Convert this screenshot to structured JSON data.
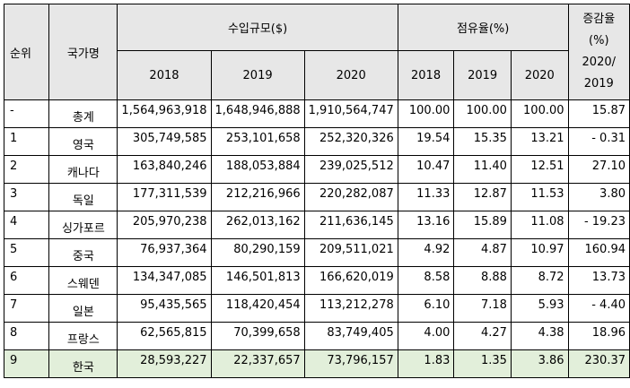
{
  "header": {
    "rank": "순위",
    "country": "국가명",
    "import_scale": "수입규모($)",
    "share": "점유율(%)",
    "change_line1": "증감율",
    "change_line2": "(%)",
    "change_line3": "2020/",
    "change_line4": "2019",
    "years": [
      "2018",
      "2019",
      "2020"
    ]
  },
  "rows": [
    {
      "rank": "-",
      "country": "총계",
      "imp2018": "1,564,963,918",
      "imp2019": "1,648,946,888",
      "imp2020": "1,910,564,747",
      "sh2018": "100.00",
      "sh2019": "100.00",
      "sh2020": "100.00",
      "change": "15.87"
    },
    {
      "rank": "1",
      "country": "영국",
      "imp2018": "305,749,585",
      "imp2019": "253,101,658",
      "imp2020": "252,320,326",
      "sh2018": "19.54",
      "sh2019": "15.35",
      "sh2020": "13.21",
      "change": "- 0.31"
    },
    {
      "rank": "2",
      "country": "캐나다",
      "imp2018": "163,840,246",
      "imp2019": "188,053,884",
      "imp2020": "239,025,512",
      "sh2018": "10.47",
      "sh2019": "11.40",
      "sh2020": "12.51",
      "change": "27.10"
    },
    {
      "rank": "3",
      "country": "독일",
      "imp2018": "177,311,539",
      "imp2019": "212,216,966",
      "imp2020": "220,282,087",
      "sh2018": "11.33",
      "sh2019": "12.87",
      "sh2020": "11.53",
      "change": "3.80"
    },
    {
      "rank": "4",
      "country": "싱가포르",
      "imp2018": "205,970,238",
      "imp2019": "262,013,162",
      "imp2020": "211,636,145",
      "sh2018": "13.16",
      "sh2019": "15.89",
      "sh2020": "11.08",
      "change": "- 19.23"
    },
    {
      "rank": "5",
      "country": "중국",
      "imp2018": "76,937,364",
      "imp2019": "80,290,159",
      "imp2020": "209,511,021",
      "sh2018": "4.92",
      "sh2019": "4.87",
      "sh2020": "10.97",
      "change": "160.94"
    },
    {
      "rank": "6",
      "country": "스웨덴",
      "imp2018": "134,347,085",
      "imp2019": "146,501,813",
      "imp2020": "166,620,019",
      "sh2018": "8.58",
      "sh2019": "8.88",
      "sh2020": "8.72",
      "change": "13.73"
    },
    {
      "rank": "7",
      "country": "일본",
      "imp2018": "95,435,565",
      "imp2019": "118,420,454",
      "imp2020": "113,212,278",
      "sh2018": "6.10",
      "sh2019": "7.18",
      "sh2020": "5.93",
      "change": "- 4.40"
    },
    {
      "rank": "8",
      "country": "프랑스",
      "imp2018": "62,565,815",
      "imp2019": "70,399,658",
      "imp2020": "83,749,405",
      "sh2018": "4.00",
      "sh2019": "4.27",
      "sh2020": "4.38",
      "change": "18.96"
    },
    {
      "rank": "9",
      "country": "한국",
      "imp2018": "28,593,227",
      "imp2019": "22,337,657",
      "imp2020": "73,796,157",
      "sh2018": "1.83",
      "sh2019": "1.35",
      "sh2020": "3.86",
      "change": "230.37"
    }
  ],
  "colors": {
    "header_bg": "#e7e7e7",
    "highlight_bg": "#e2efda",
    "border": "#000000"
  }
}
